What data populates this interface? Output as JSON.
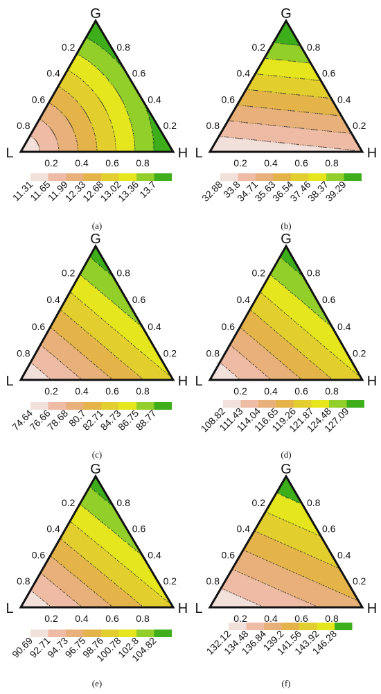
{
  "chart_data": [
    {
      "type": "ternary-contour",
      "panel_label": "(a)",
      "vertices": {
        "top": "G",
        "left": "L",
        "right": "H"
      },
      "ticks": [
        "0.2",
        "0.4",
        "0.6",
        "0.8"
      ],
      "colorbar_values": [
        "11.31",
        "11.65",
        "11.99",
        "12.33",
        "12.68",
        "13.02",
        "13.36",
        "13.7"
      ],
      "colors": [
        "#f2e0da",
        "#eebba5",
        "#e8b07a",
        "#e4b44a",
        "#e2cf2f",
        "#e6e61f",
        "#93cf2a",
        "#3eae1b"
      ],
      "contour_style": "curved-about-L",
      "bands": 8
    },
    {
      "type": "ternary-contour",
      "panel_label": "(b)",
      "vertices": {
        "top": "G",
        "left": "L",
        "right": "H"
      },
      "ticks": [
        "0.2",
        "0.4",
        "0.6",
        "0.8"
      ],
      "colorbar_values": [
        "32.88",
        "33.8",
        "34.71",
        "35.63",
        "36.54",
        "37.46",
        "38.37",
        "39.29"
      ],
      "colors": [
        "#f2e0da",
        "#eebba5",
        "#e8b07a",
        "#e4b44a",
        "#e2cf2f",
        "#e6e61f",
        "#93cf2a",
        "#3eae1b"
      ],
      "contour_style": "near-horizontal",
      "bands": 8
    },
    {
      "type": "ternary-contour",
      "panel_label": "(c)",
      "vertices": {
        "top": "G",
        "left": "L",
        "right": "H"
      },
      "ticks": [
        "0.2",
        "0.4",
        "0.6",
        "0.8"
      ],
      "colorbar_values": [
        "74.64",
        "76.66",
        "78.68",
        "80.7",
        "82.71",
        "84.73",
        "86.75",
        "88.77"
      ],
      "colors": [
        "#f2e0da",
        "#eebba5",
        "#e8b07a",
        "#e4b44a",
        "#e2cf2f",
        "#e6e61f",
        "#93cf2a",
        "#3eae1b"
      ],
      "contour_style": "diagonal",
      "bands": 8
    },
    {
      "type": "ternary-contour",
      "panel_label": "(d)",
      "vertices": {
        "top": "G",
        "left": "L",
        "right": "H"
      },
      "ticks": [
        "0.2",
        "0.4",
        "0.6",
        "0.8"
      ],
      "colorbar_values": [
        "108.82",
        "111.43",
        "114.04",
        "116.65",
        "119.26",
        "121.87",
        "124.48",
        "127.09"
      ],
      "colors": [
        "#f2e0da",
        "#eebba5",
        "#e8b07a",
        "#e4b44a",
        "#e2cf2f",
        "#e6e61f",
        "#93cf2a",
        "#3eae1b"
      ],
      "contour_style": "diagonal",
      "bands": 8
    },
    {
      "type": "ternary-contour",
      "panel_label": "(e)",
      "vertices": {
        "top": "G",
        "left": "L",
        "right": "H"
      },
      "ticks": [
        "0.2",
        "0.4",
        "0.6",
        "0.8"
      ],
      "colorbar_values": [
        "90.69",
        "92.71",
        "94.73",
        "96.75",
        "98.76",
        "100.78",
        "102.8",
        "104.82"
      ],
      "colors": [
        "#f2e0da",
        "#eebba5",
        "#e8b07a",
        "#e4b44a",
        "#e2cf2f",
        "#e6e61f",
        "#93cf2a",
        "#3eae1b"
      ],
      "contour_style": "diagonal",
      "bands": 8
    },
    {
      "type": "ternary-contour",
      "panel_label": "(f)",
      "vertices": {
        "top": "G",
        "left": "L",
        "right": "H"
      },
      "ticks": [
        "0.2",
        "0.4",
        "0.6",
        "0.8"
      ],
      "colorbar_values": [
        "132.12",
        "134.48",
        "136.84",
        "139.2",
        "141.56",
        "143.92",
        "146.28"
      ],
      "colors": [
        "#f2e0da",
        "#eebba5",
        "#e8b07a",
        "#e4b44a",
        "#e2cf2f",
        "#e6e61f",
        "#3eae1b"
      ],
      "contour_style": "mild-diagonal",
      "bands": 7
    }
  ]
}
